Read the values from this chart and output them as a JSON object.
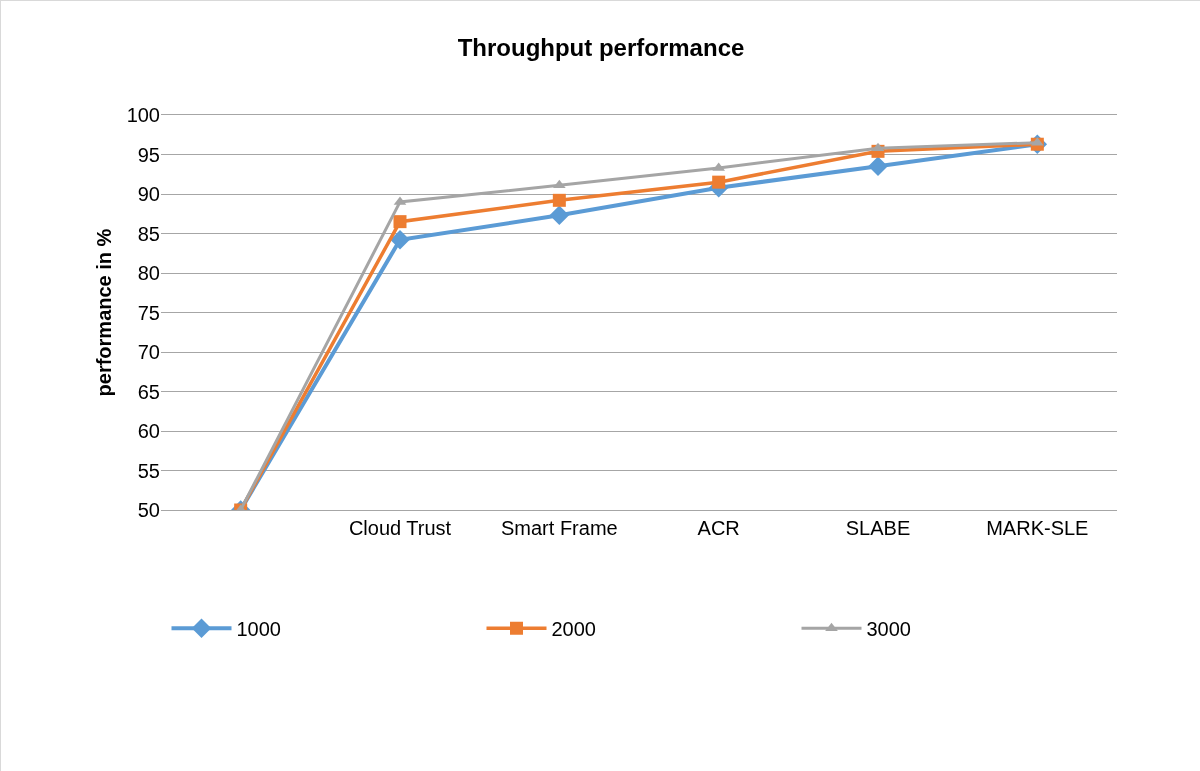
{
  "chart_data": {
    "type": "line",
    "title": "Throughput performance",
    "ylabel": "performance in %",
    "categories": [
      null,
      "Cloud Trust",
      "Smart Frame",
      "ACR",
      "SLABE",
      "MARK-SLE"
    ],
    "series": [
      {
        "name": "1000",
        "color": "#5b9bd5",
        "marker": "diamond",
        "values": [
          50,
          84.2,
          87.3,
          90.8,
          93.5,
          96.3
        ]
      },
      {
        "name": "2000",
        "color": "#ed7d31",
        "marker": "square",
        "values": [
          50,
          86.5,
          89.2,
          91.5,
          95.4,
          96.3
        ]
      },
      {
        "name": "3000",
        "color": "#a5a5a5",
        "marker": "triangle",
        "values": [
          50,
          89.0,
          91.1,
          93.3,
          95.8,
          96.5
        ]
      }
    ],
    "ylim": [
      50,
      100
    ],
    "yticks": [
      50,
      55,
      60,
      65,
      70,
      75,
      80,
      85,
      90,
      95,
      100
    ],
    "grid": "y",
    "legend": "bottom",
    "line_style": "solid"
  }
}
